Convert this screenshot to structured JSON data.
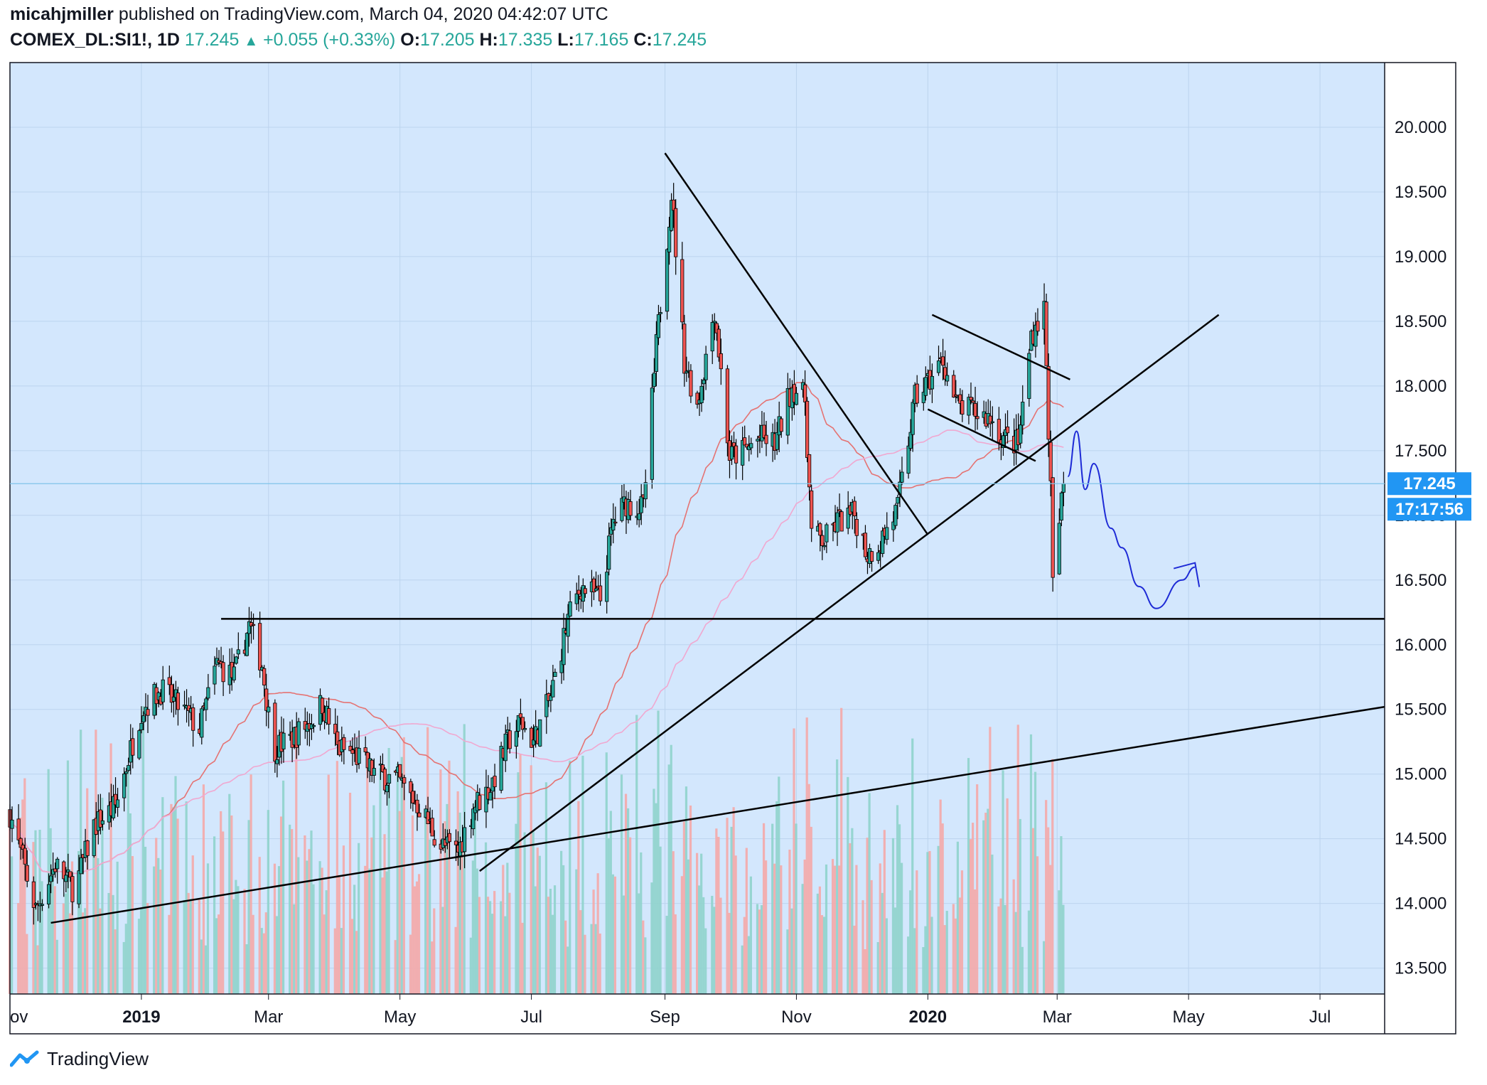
{
  "header": {
    "author": "micahjmiller",
    "published": "published on TradingView.com, March 04, 2020 04:42:07 UTC",
    "symbol": "COMEX_DL:SI1!, 1D",
    "last": "17.245",
    "change": "+0.055 (+0.33%)",
    "o_label": "O:",
    "o_value": "17.205",
    "h_label": "H:",
    "h_value": "17.335",
    "l_label": "L:",
    "l_value": "17.165",
    "c_label": "C:",
    "c_value": "17.245"
  },
  "footer": {
    "brand": "TradingView"
  },
  "colors": {
    "background": "#d3e7fd",
    "up": "#26a69a",
    "down": "#ef5350",
    "ma_fast": "#e57373",
    "ma_slow": "#f0a8d0",
    "trendline": "#000000",
    "forecast": "#1e2bd6",
    "price_tag": "#2196f3"
  },
  "price_axis": {
    "ticks": [
      "20.000",
      "19.500",
      "19.000",
      "18.500",
      "18.000",
      "17.500",
      "17.000",
      "16.500",
      "16.000",
      "15.500",
      "15.000",
      "14.500",
      "14.000",
      "13.500"
    ],
    "last_price_tag": "17.245",
    "countdown_tag": "17:17:56"
  },
  "time_axis": {
    "labels": [
      {
        "text": "ov",
        "bold": false
      },
      {
        "text": "2019",
        "bold": true
      },
      {
        "text": "Mar",
        "bold": false
      },
      {
        "text": "May",
        "bold": false
      },
      {
        "text": "Jul",
        "bold": false
      },
      {
        "text": "Sep",
        "bold": false
      },
      {
        "text": "Nov",
        "bold": false
      },
      {
        "text": "2020",
        "bold": true
      },
      {
        "text": "Mar",
        "bold": false
      },
      {
        "text": "May",
        "bold": false
      },
      {
        "text": "Jul",
        "bold": false
      }
    ]
  },
  "chart_data": {
    "type": "candlestick",
    "symbol": "COMEX_DL:SI1!",
    "interval": "1D",
    "ylim": [
      13.3,
      20.5
    ],
    "x_range": [
      "2018-11-01",
      "2020-07-31"
    ],
    "grid": true,
    "price_points": [
      {
        "date": "2018-11-01",
        "close": 14.7
      },
      {
        "date": "2018-11-13",
        "close": 13.95
      },
      {
        "date": "2018-11-22",
        "close": 14.3
      },
      {
        "date": "2018-12-01",
        "close": 14.1
      },
      {
        "date": "2018-12-10",
        "close": 14.6
      },
      {
        "date": "2018-12-20",
        "close": 14.75
      },
      {
        "date": "2019-01-01",
        "close": 15.5
      },
      {
        "date": "2019-01-10",
        "close": 15.65
      },
      {
        "date": "2019-01-20",
        "close": 15.5
      },
      {
        "date": "2019-01-28",
        "close": 15.35
      },
      {
        "date": "2019-02-05",
        "close": 15.85
      },
      {
        "date": "2019-02-13",
        "close": 15.75
      },
      {
        "date": "2019-02-20",
        "close": 16.15
      },
      {
        "date": "2019-02-26",
        "close": 15.85
      },
      {
        "date": "2019-03-03",
        "close": 15.2
      },
      {
        "date": "2019-03-10",
        "close": 15.25
      },
      {
        "date": "2019-03-20",
        "close": 15.4
      },
      {
        "date": "2019-03-26",
        "close": 15.55
      },
      {
        "date": "2019-04-02",
        "close": 15.2
      },
      {
        "date": "2019-04-10",
        "close": 15.15
      },
      {
        "date": "2019-04-20",
        "close": 15.0
      },
      {
        "date": "2019-04-30",
        "close": 14.95
      },
      {
        "date": "2019-05-10",
        "close": 14.75
      },
      {
        "date": "2019-05-20",
        "close": 14.45
      },
      {
        "date": "2019-05-28",
        "close": 14.4
      },
      {
        "date": "2019-06-04",
        "close": 14.75
      },
      {
        "date": "2019-06-12",
        "close": 14.9
      },
      {
        "date": "2019-06-20",
        "close": 15.25
      },
      {
        "date": "2019-06-26",
        "close": 15.4
      },
      {
        "date": "2019-07-02",
        "close": 15.25
      },
      {
        "date": "2019-07-10",
        "close": 15.6
      },
      {
        "date": "2019-07-18",
        "close": 16.2
      },
      {
        "date": "2019-07-24",
        "close": 16.45
      },
      {
        "date": "2019-08-02",
        "close": 16.35
      },
      {
        "date": "2019-08-08",
        "close": 16.95
      },
      {
        "date": "2019-08-14",
        "close": 17.1
      },
      {
        "date": "2019-08-22",
        "close": 17.05
      },
      {
        "date": "2019-08-28",
        "close": 18.3
      },
      {
        "date": "2019-09-04",
        "close": 19.5
      },
      {
        "date": "2019-09-10",
        "close": 18.2
      },
      {
        "date": "2019-09-16",
        "close": 17.85
      },
      {
        "date": "2019-09-24",
        "close": 18.6
      },
      {
        "date": "2019-10-01",
        "close": 17.45
      },
      {
        "date": "2019-10-08",
        "close": 17.5
      },
      {
        "date": "2019-10-15",
        "close": 17.6
      },
      {
        "date": "2019-10-22",
        "close": 17.55
      },
      {
        "date": "2019-10-30",
        "close": 18.0
      },
      {
        "date": "2019-11-05",
        "close": 17.9
      },
      {
        "date": "2019-11-08",
        "close": 16.85
      },
      {
        "date": "2019-11-14",
        "close": 16.8
      },
      {
        "date": "2019-11-20",
        "close": 16.95
      },
      {
        "date": "2019-11-28",
        "close": 17.0
      },
      {
        "date": "2019-12-04",
        "close": 16.7
      },
      {
        "date": "2019-12-10",
        "close": 16.8
      },
      {
        "date": "2019-12-18",
        "close": 17.05
      },
      {
        "date": "2019-12-26",
        "close": 17.9
      },
      {
        "date": "2020-01-02",
        "close": 18.05
      },
      {
        "date": "2020-01-08",
        "close": 18.2
      },
      {
        "date": "2020-01-14",
        "close": 17.85
      },
      {
        "date": "2020-01-22",
        "close": 17.8
      },
      {
        "date": "2020-01-30",
        "close": 17.75
      },
      {
        "date": "2020-02-05",
        "close": 17.6
      },
      {
        "date": "2020-02-12",
        "close": 17.55
      },
      {
        "date": "2020-02-18",
        "close": 18.4
      },
      {
        "date": "2020-02-24",
        "close": 18.6
      },
      {
        "date": "2020-02-27",
        "close": 17.2
      },
      {
        "date": "2020-02-28",
        "close": 16.45
      },
      {
        "date": "2020-03-02",
        "close": 16.95
      },
      {
        "date": "2020-03-04",
        "close": 17.245
      }
    ],
    "drawings": {
      "horizontal_level": 16.2,
      "falling_trendline": [
        {
          "date": "2019-09-01",
          "price": 19.8
        },
        {
          "date": "2020-01-01",
          "price": 16.85
        }
      ],
      "rising_trendline": [
        {
          "date": "2019-06-07",
          "price": 14.25
        },
        {
          "date": "2020-05-15",
          "price": 18.55
        }
      ],
      "long_support_line": [
        {
          "date": "2018-11-20",
          "price": 13.85
        },
        {
          "date": "2020-07-31",
          "price": 15.52
        }
      ],
      "channel_upper": [
        {
          "date": "2020-01-03",
          "price": 18.55
        },
        {
          "date": "2020-03-07",
          "price": 18.05
        }
      ],
      "channel_lower": [
        {
          "date": "2020-01-01",
          "price": 17.82
        },
        {
          "date": "2020-02-20",
          "price": 17.42
        }
      ]
    },
    "forecast_path": [
      {
        "date": "2020-03-06",
        "price": 17.3
      },
      {
        "date": "2020-03-10",
        "price": 17.65
      },
      {
        "date": "2020-03-14",
        "price": 17.2
      },
      {
        "date": "2020-03-18",
        "price": 17.4
      },
      {
        "date": "2020-03-26",
        "price": 16.9
      },
      {
        "date": "2020-03-31",
        "price": 16.75
      },
      {
        "date": "2020-04-08",
        "price": 16.45
      },
      {
        "date": "2020-04-16",
        "price": 16.28
      },
      {
        "date": "2020-04-28",
        "price": 16.5
      },
      {
        "date": "2020-05-04",
        "price": 16.6
      }
    ]
  }
}
